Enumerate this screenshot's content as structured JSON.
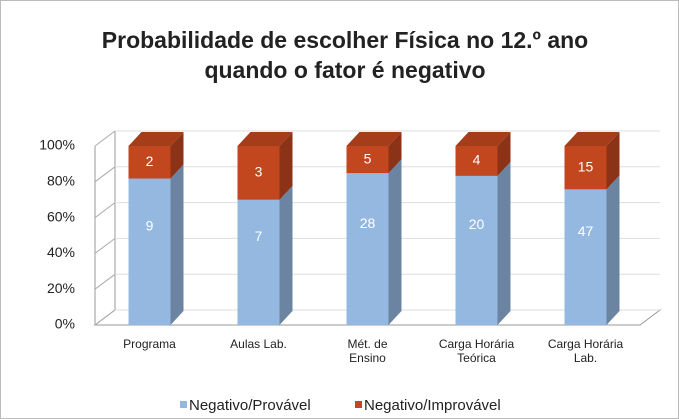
{
  "chart_data": {
    "type": "bar",
    "stacking": "percent",
    "title": "Probabilidade de escolher Física no 12.º ano\nquando o fator é negativo",
    "categories": [
      "Programa",
      "Aulas Lab.",
      "Mét. de\nEnsino",
      "Carga Horária\nTeórica",
      "Carga Horária\nLab."
    ],
    "series": [
      {
        "name": "Negativo/Provável",
        "color": "#94b8df",
        "values": [
          9,
          7,
          28,
          20,
          47
        ]
      },
      {
        "name": "Negativo/Improvável",
        "color": "#c2461e",
        "values": [
          2,
          3,
          5,
          4,
          15
        ]
      }
    ],
    "ylim": [
      0,
      100
    ],
    "yticks": [
      {
        "value": 0,
        "label": "0%"
      },
      {
        "value": 20,
        "label": "20%"
      },
      {
        "value": 40,
        "label": "40%"
      },
      {
        "value": 60,
        "label": "60%"
      },
      {
        "value": 80,
        "label": "80%"
      },
      {
        "value": 100,
        "label": "100%"
      }
    ],
    "grid": true,
    "legend": "bottom"
  }
}
